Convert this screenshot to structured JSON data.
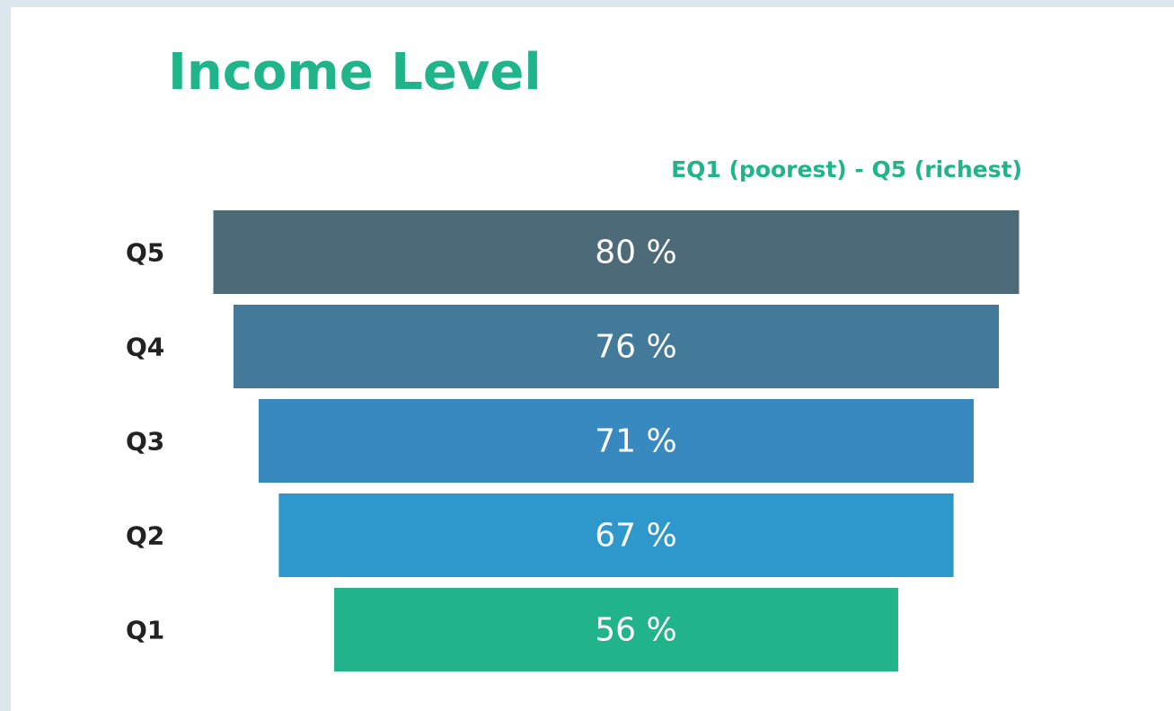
{
  "chart_data": {
    "type": "funnel",
    "title": "Income Level",
    "subtitle": "EQ1 (poorest) - Q5 (richest)",
    "categories": [
      "Q5",
      "Q4",
      "Q3",
      "Q2",
      "Q1"
    ],
    "values": [
      80,
      76,
      71,
      67,
      56
    ],
    "value_labels": [
      "80 %",
      "76 %",
      "71 %",
      "67 %",
      "56 %"
    ],
    "colors": [
      "#4d6a78",
      "#437a99",
      "#3789bf",
      "#2e98cc",
      "#21b38a"
    ]
  }
}
